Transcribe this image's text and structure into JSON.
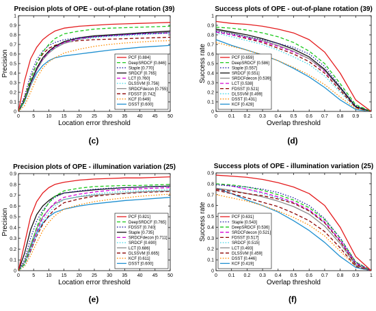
{
  "chart_data": [
    {
      "type": "line",
      "panel": "c",
      "title": "Precision plots of OPE - out-of-plane rotation (39)",
      "xlabel": "Location error threshold",
      "ylabel": "Precision",
      "xlim": [
        0,
        50
      ],
      "ylim": [
        0,
        1
      ],
      "xticks": [
        0,
        5,
        10,
        15,
        20,
        25,
        30,
        35,
        40,
        45,
        50
      ],
      "yticks": [
        0,
        0.1,
        0.2,
        0.3,
        0.4,
        0.5,
        0.6,
        0.7,
        0.8,
        0.9,
        1
      ],
      "grid": false,
      "legend_position": "bottom-right",
      "x": [
        0,
        2,
        4,
        6,
        8,
        10,
        12,
        15,
        20,
        25,
        30,
        35,
        40,
        45,
        50
      ],
      "series": [
        {
          "name": "PCF [0.884]",
          "color": "#e41a1c",
          "dash": "solid",
          "values": [
            0,
            0.32,
            0.55,
            0.67,
            0.75,
            0.8,
            0.84,
            0.87,
            0.89,
            0.9,
            0.91,
            0.915,
            0.92,
            0.925,
            0.93
          ]
        },
        {
          "name": "DeepSRDCF [0.846]",
          "color": "#19c819",
          "dash": "dashed",
          "values": [
            0,
            0.12,
            0.33,
            0.5,
            0.62,
            0.7,
            0.76,
            0.81,
            0.84,
            0.86,
            0.87,
            0.875,
            0.88,
            0.885,
            0.89
          ]
        },
        {
          "name": "Staple [0.770]",
          "color": "#1f1fa0",
          "dash": "dotted",
          "values": [
            0,
            0.16,
            0.38,
            0.54,
            0.63,
            0.69,
            0.72,
            0.75,
            0.77,
            0.78,
            0.79,
            0.8,
            0.81,
            0.815,
            0.82
          ]
        },
        {
          "name": "SRDCF [0.765]",
          "color": "#111111",
          "dash": "solid",
          "values": [
            0,
            0.12,
            0.3,
            0.45,
            0.56,
            0.63,
            0.68,
            0.73,
            0.77,
            0.79,
            0.8,
            0.81,
            0.82,
            0.83,
            0.84
          ]
        },
        {
          "name": "LCT [0.760]",
          "color": "#d400d4",
          "dash": "dashed",
          "values": [
            0,
            0.12,
            0.29,
            0.44,
            0.55,
            0.62,
            0.67,
            0.72,
            0.76,
            0.78,
            0.79,
            0.8,
            0.81,
            0.815,
            0.82
          ]
        },
        {
          "name": "DLSSVM [0.756]",
          "color": "#3fd6e6",
          "dash": "dotted",
          "values": [
            0,
            0.1,
            0.28,
            0.44,
            0.55,
            0.62,
            0.67,
            0.72,
            0.755,
            0.77,
            0.785,
            0.79,
            0.8,
            0.81,
            0.82
          ]
        },
        {
          "name": "SRDCFdecon [0.755]",
          "color": "#8c8c8c",
          "dash": "solid",
          "values": [
            0,
            0.1,
            0.27,
            0.43,
            0.54,
            0.61,
            0.66,
            0.71,
            0.755,
            0.78,
            0.795,
            0.805,
            0.815,
            0.82,
            0.83
          ]
        },
        {
          "name": "FDSST [0.742]",
          "color": "#8b0000",
          "dash": "dashed",
          "values": [
            0,
            0.14,
            0.34,
            0.5,
            0.6,
            0.66,
            0.69,
            0.72,
            0.74,
            0.75,
            0.755,
            0.76,
            0.765,
            0.77,
            0.775
          ]
        },
        {
          "name": "KCF [0.649]",
          "color": "#ff8c00",
          "dash": "dotted",
          "values": [
            0,
            0.06,
            0.2,
            0.35,
            0.45,
            0.52,
            0.56,
            0.61,
            0.65,
            0.68,
            0.7,
            0.715,
            0.725,
            0.735,
            0.74
          ]
        },
        {
          "name": "DSST [0.600]",
          "color": "#1e8fd0",
          "dash": "solid",
          "values": [
            0,
            0.1,
            0.27,
            0.4,
            0.48,
            0.53,
            0.56,
            0.58,
            0.6,
            0.62,
            0.64,
            0.655,
            0.67,
            0.68,
            0.69
          ]
        }
      ]
    },
    {
      "type": "line",
      "panel": "d",
      "title": "Success plots of OPE - out-of-plane rotation (39)",
      "xlabel": "Overlap threshold",
      "ylabel": "Success rate",
      "xlim": [
        0,
        1
      ],
      "ylim": [
        0,
        1
      ],
      "xticks": [
        0,
        0.1,
        0.2,
        0.3,
        0.4,
        0.5,
        0.6,
        0.7,
        0.8,
        0.9,
        1
      ],
      "yticks": [
        0,
        0.1,
        0.2,
        0.3,
        0.4,
        0.5,
        0.6,
        0.7,
        0.8,
        0.9,
        1
      ],
      "grid": false,
      "legend_position": "bottom-left",
      "x": [
        0,
        0.1,
        0.2,
        0.3,
        0.4,
        0.5,
        0.6,
        0.7,
        0.8,
        0.9,
        1
      ],
      "series": [
        {
          "name": "PCF [0.659]",
          "color": "#e41a1c",
          "dash": "solid",
          "values": [
            0.94,
            0.92,
            0.91,
            0.89,
            0.86,
            0.82,
            0.75,
            0.62,
            0.4,
            0.12,
            0
          ]
        },
        {
          "name": "DeepSRDCF [0.586]",
          "color": "#19c819",
          "dash": "dashed",
          "values": [
            0.88,
            0.87,
            0.85,
            0.82,
            0.78,
            0.72,
            0.63,
            0.5,
            0.29,
            0.07,
            0
          ]
        },
        {
          "name": "Staple [0.557]",
          "color": "#1f1fa0",
          "dash": "dotted",
          "values": [
            0.84,
            0.81,
            0.78,
            0.75,
            0.71,
            0.67,
            0.6,
            0.47,
            0.26,
            0.06,
            0
          ]
        },
        {
          "name": "SRDCF [0.551]",
          "color": "#111111",
          "dash": "solid",
          "values": [
            0.86,
            0.83,
            0.8,
            0.76,
            0.71,
            0.65,
            0.57,
            0.44,
            0.25,
            0.05,
            0
          ]
        },
        {
          "name": "SRDCFdecon [0.539]",
          "color": "#8c8c8c",
          "dash": "solid",
          "values": [
            0.85,
            0.82,
            0.78,
            0.74,
            0.69,
            0.63,
            0.55,
            0.43,
            0.24,
            0.05,
            0
          ]
        },
        {
          "name": "LCT [0.538]",
          "color": "#d400d4",
          "dash": "dashed",
          "values": [
            0.83,
            0.8,
            0.77,
            0.73,
            0.68,
            0.62,
            0.55,
            0.42,
            0.24,
            0.05,
            0
          ]
        },
        {
          "name": "FDSST [0.521]",
          "color": "#8b0000",
          "dash": "dashed",
          "values": [
            0.83,
            0.8,
            0.76,
            0.72,
            0.66,
            0.6,
            0.52,
            0.4,
            0.22,
            0.04,
            0
          ]
        },
        {
          "name": "DLSSVM [0.499]",
          "color": "#3fd6e6",
          "dash": "dotted",
          "values": [
            0.82,
            0.78,
            0.74,
            0.7,
            0.64,
            0.57,
            0.49,
            0.37,
            0.2,
            0.04,
            0
          ]
        },
        {
          "name": "DSST [0.431]",
          "color": "#ff8c00",
          "dash": "dotted",
          "values": [
            0.72,
            0.68,
            0.64,
            0.59,
            0.53,
            0.46,
            0.38,
            0.28,
            0.15,
            0.03,
            0
          ]
        },
        {
          "name": "KCF [0.428]",
          "color": "#1e8fd0",
          "dash": "solid",
          "values": [
            0.75,
            0.69,
            0.64,
            0.59,
            0.53,
            0.45,
            0.36,
            0.25,
            0.12,
            0.02,
            0
          ]
        }
      ]
    },
    {
      "type": "line",
      "panel": "e",
      "title": "Precision plots of OPE - illumination variation (25)",
      "xlabel": "Location error threshold",
      "ylabel": "Precision",
      "xlim": [
        0,
        50
      ],
      "ylim": [
        0,
        0.9
      ],
      "xticks": [
        0,
        5,
        10,
        15,
        20,
        25,
        30,
        35,
        40,
        45,
        50
      ],
      "yticks": [
        0,
        0.1,
        0.2,
        0.3,
        0.4,
        0.5,
        0.6,
        0.7,
        0.8,
        0.9
      ],
      "grid": false,
      "legend_position": "bottom-right",
      "x": [
        0,
        2,
        4,
        6,
        8,
        10,
        12,
        15,
        20,
        25,
        30,
        35,
        40,
        45,
        50
      ],
      "series": [
        {
          "name": "PCF [0.821]",
          "color": "#e41a1c",
          "dash": "solid",
          "values": [
            0,
            0.25,
            0.5,
            0.64,
            0.72,
            0.77,
            0.8,
            0.82,
            0.84,
            0.85,
            0.855,
            0.86,
            0.86,
            0.865,
            0.87
          ]
        },
        {
          "name": "DeepSRDCF [0.765]",
          "color": "#19c819",
          "dash": "dashed",
          "values": [
            0,
            0.06,
            0.22,
            0.4,
            0.54,
            0.63,
            0.69,
            0.74,
            0.765,
            0.78,
            0.785,
            0.79,
            0.79,
            0.795,
            0.8
          ]
        },
        {
          "name": "FDSST [0.740]",
          "color": "#1f1fa0",
          "dash": "dotted",
          "values": [
            0,
            0.1,
            0.3,
            0.46,
            0.56,
            0.63,
            0.68,
            0.72,
            0.74,
            0.755,
            0.765,
            0.77,
            0.775,
            0.78,
            0.78
          ]
        },
        {
          "name": "Staple [0.735]",
          "color": "#111111",
          "dash": "solid",
          "values": [
            0,
            0.16,
            0.38,
            0.52,
            0.6,
            0.65,
            0.69,
            0.72,
            0.735,
            0.75,
            0.76,
            0.77,
            0.775,
            0.78,
            0.785
          ]
        },
        {
          "name": "SRDCFdecon [0.711]",
          "color": "#d400d4",
          "dash": "dashed",
          "values": [
            0,
            0.06,
            0.2,
            0.36,
            0.49,
            0.57,
            0.63,
            0.68,
            0.71,
            0.73,
            0.745,
            0.755,
            0.76,
            0.765,
            0.77
          ]
        },
        {
          "name": "SRDCF [0.690]",
          "color": "#3fd6e6",
          "dash": "dotted",
          "values": [
            0,
            0.05,
            0.18,
            0.33,
            0.46,
            0.54,
            0.6,
            0.66,
            0.69,
            0.71,
            0.725,
            0.735,
            0.74,
            0.745,
            0.75
          ]
        },
        {
          "name": "LCT [0.686]",
          "color": "#8c8c8c",
          "dash": "solid",
          "values": [
            0,
            0.08,
            0.24,
            0.39,
            0.5,
            0.57,
            0.62,
            0.66,
            0.686,
            0.7,
            0.71,
            0.72,
            0.73,
            0.735,
            0.74
          ]
        },
        {
          "name": "DLSSVM [0.665]",
          "color": "#8b0000",
          "dash": "dashed",
          "values": [
            0,
            0.06,
            0.18,
            0.32,
            0.43,
            0.51,
            0.57,
            0.63,
            0.665,
            0.69,
            0.705,
            0.715,
            0.725,
            0.73,
            0.735
          ]
        },
        {
          "name": "KCF [0.611]",
          "color": "#ff8c00",
          "dash": "dotted",
          "values": [
            0,
            0.04,
            0.14,
            0.26,
            0.37,
            0.45,
            0.51,
            0.57,
            0.611,
            0.64,
            0.66,
            0.675,
            0.69,
            0.7,
            0.71
          ]
        },
        {
          "name": "DSST [0.600]",
          "color": "#1e8fd0",
          "dash": "solid",
          "values": [
            0,
            0.08,
            0.22,
            0.35,
            0.44,
            0.5,
            0.54,
            0.57,
            0.6,
            0.62,
            0.635,
            0.65,
            0.66,
            0.67,
            0.68
          ]
        }
      ]
    },
    {
      "type": "line",
      "panel": "f",
      "title": "Success plots of OPE - illumination variation (25)",
      "xlabel": "Overlap threshold",
      "ylabel": "Success rate",
      "xlim": [
        0,
        1
      ],
      "ylim": [
        0,
        0.9
      ],
      "xticks": [
        0,
        0.1,
        0.2,
        0.3,
        0.4,
        0.5,
        0.6,
        0.7,
        0.8,
        0.9,
        1
      ],
      "yticks": [
        0,
        0.1,
        0.2,
        0.3,
        0.4,
        0.5,
        0.6,
        0.7,
        0.8,
        0.9
      ],
      "grid": false,
      "legend_position": "bottom-left",
      "x": [
        0,
        0.1,
        0.2,
        0.3,
        0.4,
        0.5,
        0.6,
        0.7,
        0.8,
        0.9,
        1
      ],
      "series": [
        {
          "name": "PCF [0.631]",
          "color": "#e41a1c",
          "dash": "solid",
          "values": [
            0.88,
            0.87,
            0.86,
            0.84,
            0.81,
            0.77,
            0.71,
            0.6,
            0.4,
            0.13,
            0
          ]
        },
        {
          "name": "Staple [0.543]",
          "color": "#1f1fa0",
          "dash": "dotted",
          "values": [
            0.79,
            0.78,
            0.77,
            0.75,
            0.72,
            0.67,
            0.6,
            0.48,
            0.3,
            0.08,
            0
          ]
        },
        {
          "name": "DeepSRDCF [0.536]",
          "color": "#19c819",
          "dash": "dashed",
          "values": [
            0.8,
            0.79,
            0.77,
            0.74,
            0.7,
            0.65,
            0.58,
            0.47,
            0.3,
            0.08,
            0
          ]
        },
        {
          "name": "SRDCFdecon [0.521]",
          "color": "#d400d4",
          "dash": "dashed",
          "values": [
            0.8,
            0.78,
            0.75,
            0.72,
            0.68,
            0.63,
            0.56,
            0.45,
            0.28,
            0.07,
            0
          ]
        },
        {
          "name": "FDSST [0.517]",
          "color": "#8b0000",
          "dash": "dashed",
          "values": [
            0.75,
            0.73,
            0.71,
            0.69,
            0.66,
            0.62,
            0.55,
            0.44,
            0.27,
            0.06,
            0
          ]
        },
        {
          "name": "SRDCF [0.515]",
          "color": "#3fd6e6",
          "dash": "dotted",
          "values": [
            0.8,
            0.78,
            0.75,
            0.71,
            0.67,
            0.62,
            0.55,
            0.44,
            0.27,
            0.06,
            0
          ]
        },
        {
          "name": "LCT [0.493]",
          "color": "#8c8c8c",
          "dash": "solid",
          "values": [
            0.76,
            0.74,
            0.71,
            0.68,
            0.64,
            0.59,
            0.52,
            0.41,
            0.25,
            0.05,
            0
          ]
        },
        {
          "name": "DLSSVM [0.459]",
          "color": "#8b0000",
          "dash": "dashed",
          "values": [
            0.74,
            0.71,
            0.67,
            0.63,
            0.59,
            0.53,
            0.46,
            0.36,
            0.21,
            0.04,
            0
          ]
        },
        {
          "name": "DSST [0.446]",
          "color": "#ff8c00",
          "dash": "dotted",
          "values": [
            0.7,
            0.67,
            0.64,
            0.6,
            0.55,
            0.49,
            0.42,
            0.32,
            0.18,
            0.04,
            0
          ]
        },
        {
          "name": "KCF [0.419]",
          "color": "#1e8fd0",
          "dash": "solid",
          "values": [
            0.76,
            0.71,
            0.65,
            0.6,
            0.54,
            0.46,
            0.37,
            0.26,
            0.13,
            0.03,
            0
          ]
        }
      ]
    }
  ]
}
